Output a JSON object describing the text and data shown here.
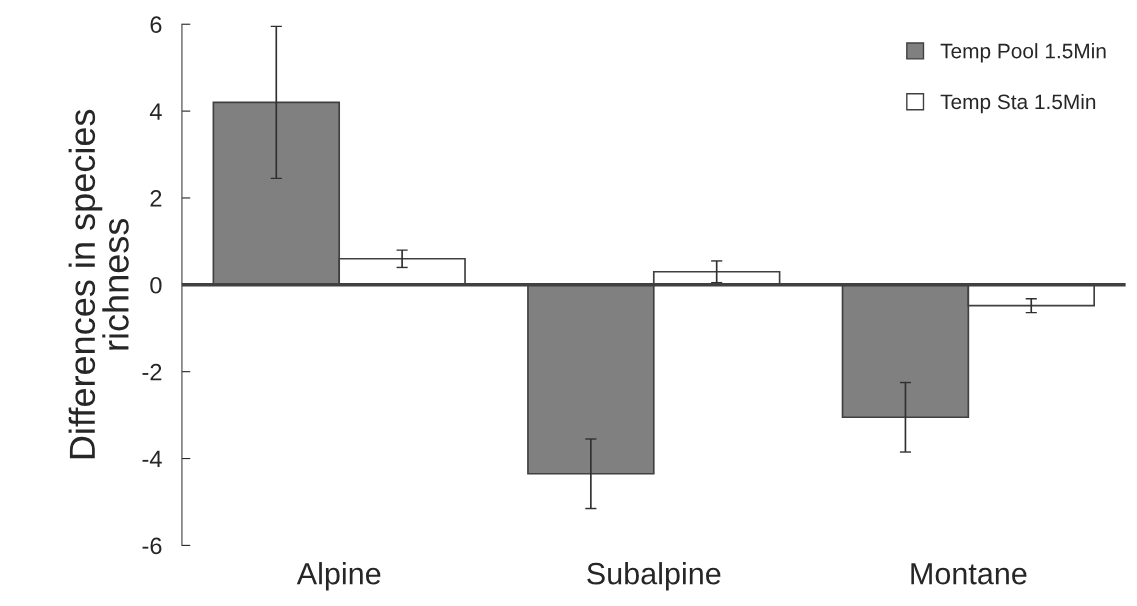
{
  "chart_data": {
    "type": "bar",
    "ylabel": "Differences in species\nrichness",
    "categories": [
      "Alpine",
      "Subalpine",
      "Montane"
    ],
    "series": [
      {
        "name": "Temp Pool 1.5Min",
        "color": "#808080",
        "values": [
          4.2,
          -4.35,
          -3.05
        ],
        "errors": [
          1.75,
          0.8,
          0.8
        ]
      },
      {
        "name": "Temp Sta 1.5Min",
        "color": "#ffffff",
        "values": [
          0.6,
          0.3,
          -0.48
        ],
        "errors": [
          0.2,
          0.25,
          0.16
        ]
      }
    ],
    "ylim": [
      -6,
      6
    ],
    "yticks": [
      -6,
      -4,
      -2,
      0,
      2,
      4,
      6
    ],
    "legend": "top right"
  }
}
